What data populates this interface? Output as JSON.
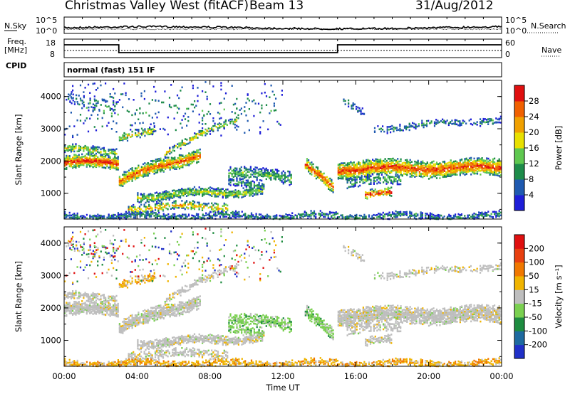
{
  "header": {
    "station": "Christmas Valley West (fitACF)",
    "beam": "Beam 13",
    "date": "31/Aug/2012"
  },
  "strip_panels": {
    "nsky": {
      "label_line1": "N.Sky",
      "ticks": [
        "10^5",
        "10^0"
      ]
    },
    "nsearch": {
      "label": "N.Search",
      "ticks": [
        "10^5",
        "10^0"
      ]
    },
    "freq": {
      "label_line1": "Freq.",
      "label_line2": "[MHz]",
      "ticks": [
        "18",
        "8"
      ]
    },
    "nave": {
      "label": "Nave",
      "ticks": [
        "60",
        "0"
      ]
    },
    "cpid": {
      "label": "CPID",
      "value": "normal (fast) 151 IF"
    }
  },
  "chart_data": [
    {
      "type": "heatmap",
      "title": "",
      "xlabel": "Time UT",
      "ylabel": "Slant Range [km]",
      "x_ticks": [
        "00:00",
        "04:00",
        "08:00",
        "12:00",
        "16:00",
        "20:00",
        "00:00"
      ],
      "y_ticks": [
        "1000",
        "2000",
        "3000",
        "4000"
      ],
      "ylim": [
        200,
        4500
      ],
      "colorbar": {
        "label": "Power [dB]",
        "ticks": [
          "4",
          "8",
          "12",
          "16",
          "20",
          "24",
          "28"
        ],
        "colors": [
          "#1e1ed8",
          "#1f5ab0",
          "#1e8c4a",
          "#5fc850",
          "#e8e000",
          "#f0a000",
          "#f06000",
          "#e01010"
        ]
      }
    },
    {
      "type": "heatmap",
      "title": "",
      "xlabel": "Time UT",
      "ylabel": "Slant Range [km]",
      "x_ticks": [
        "00:00",
        "04:00",
        "08:00",
        "12:00",
        "16:00",
        "20:00",
        "00:00"
      ],
      "y_ticks": [
        "1000",
        "2000",
        "3000",
        "4000"
      ],
      "ylim": [
        200,
        4500
      ],
      "colorbar": {
        "label": "Velocity [m s⁻¹]",
        "ticks": [
          "200",
          "100",
          "50",
          "15",
          "-15",
          "-50",
          "-100",
          "-200"
        ],
        "colors": [
          "#2030c8",
          "#1e6aa0",
          "#1e8c40",
          "#7ad050",
          "#bebebe",
          "#f0b400",
          "#f07800",
          "#e84010",
          "#e01010"
        ]
      }
    }
  ]
}
